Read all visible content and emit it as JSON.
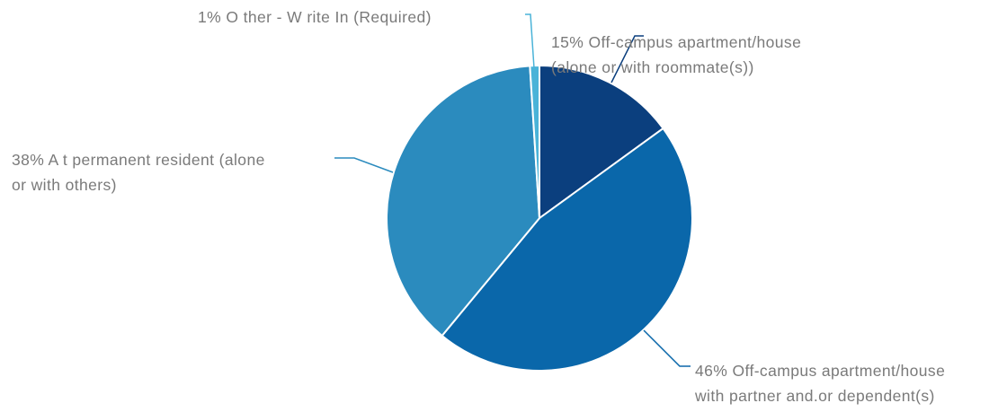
{
  "chart_data": {
    "type": "pie",
    "title": "",
    "start_angle_deg": 0,
    "direction": "clockwise",
    "slices": [
      {
        "value": 15,
        "label_lines": [
          "15% Off-campus apartment/house",
          "(alone or with roommate(s))"
        ],
        "color": "#0b3f7e"
      },
      {
        "value": 46,
        "label_lines": [
          "46% Off-campus apartment/house",
          "with partner and.or dependent(s)"
        ],
        "color": "#0a67aa"
      },
      {
        "value": 38,
        "label_lines": [
          "38% A t permanent resident (alone",
          "or with others)"
        ],
        "color": "#2b8bbe"
      },
      {
        "value": 1,
        "label_lines": [
          "1% O ther - W rite In (Required)"
        ],
        "color": "#4ab3d8"
      }
    ]
  }
}
